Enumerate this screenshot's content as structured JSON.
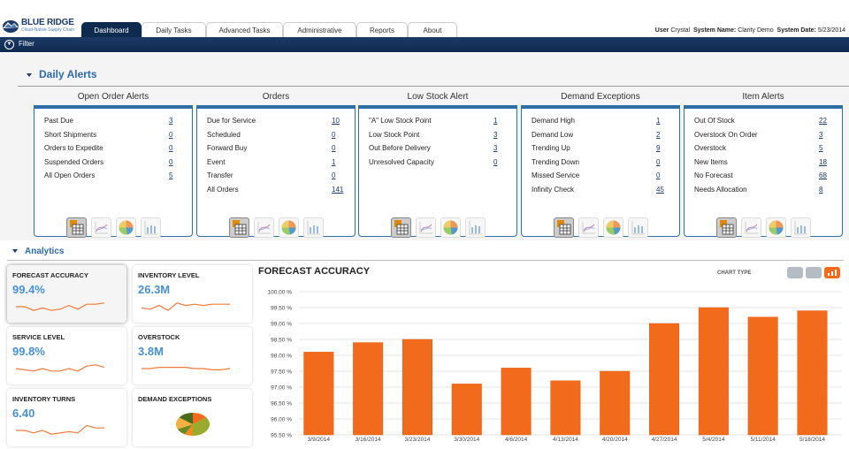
{
  "header": {
    "logo_name": "BLUE RIDGE",
    "logo_tagline": "Cloud-Native Supply Chain",
    "tabs": [
      {
        "label": "Dashboard",
        "active": true
      },
      {
        "label": "Daily Tasks"
      },
      {
        "label": "Advanced Tasks"
      },
      {
        "label": "Administrative"
      },
      {
        "label": "Reports"
      },
      {
        "label": "About"
      }
    ],
    "user_label": "User",
    "user": "Crystal",
    "system_name_label": "System Name:",
    "system_name": "Clarity Demo",
    "system_date_label": "System Date:",
    "system_date": "5/23/2014"
  },
  "navbar": {
    "filter_label": "Filter",
    "filter_icon": "filter-icon"
  },
  "daily_alerts": {
    "title": "Daily Alerts",
    "panels": [
      {
        "title": "Open Order Alerts",
        "rows": [
          {
            "label": "Past Due",
            "value": "3"
          },
          {
            "label": "Short Shipments",
            "value": "0"
          },
          {
            "label": "Orders to Expedite",
            "value": "0"
          },
          {
            "label": "Suspended Orders",
            "value": "0"
          },
          {
            "label": "All Open Orders",
            "value": "5"
          }
        ]
      },
      {
        "title": "Orders",
        "rows": [
          {
            "label": "Due for Service",
            "value": "10"
          },
          {
            "label": "Scheduled",
            "value": "0"
          },
          {
            "label": "Forward Buy",
            "value": "0"
          },
          {
            "label": "Event",
            "value": "1"
          },
          {
            "label": "Transfer",
            "value": "0"
          },
          {
            "label": "All Orders",
            "value": "141"
          }
        ]
      },
      {
        "title": "Low Stock Alert",
        "rows": [
          {
            "label": "\"A\" Low Stock Point",
            "value": "1"
          },
          {
            "label": "Low Stock Point",
            "value": "3"
          },
          {
            "label": "Out Before Delivery",
            "value": "3"
          },
          {
            "label": "Unresolved Capacity",
            "value": "0"
          }
        ]
      },
      {
        "title": "Demand Exceptions",
        "rows": [
          {
            "label": "Demand High",
            "value": "1"
          },
          {
            "label": "Demand Low",
            "value": "2"
          },
          {
            "label": "Trending Up",
            "value": "9"
          },
          {
            "label": "Trending Down",
            "value": "0"
          },
          {
            "label": "Missed Service",
            "value": "0"
          },
          {
            "label": "Infinity Check",
            "value": "45"
          }
        ]
      },
      {
        "title": "Item Alerts",
        "rows": [
          {
            "label": "Out Of Stock",
            "value": "22"
          },
          {
            "label": "Overstock On Order",
            "value": "3"
          },
          {
            "label": "Overstock",
            "value": "5"
          },
          {
            "label": "New Items",
            "value": "18"
          },
          {
            "label": "No Forecast",
            "value": "68"
          },
          {
            "label": "Needs Allocation",
            "value": "8"
          }
        ]
      }
    ],
    "view_icons": [
      "table-view-icon",
      "line-chart-view-icon",
      "pie-chart-view-icon",
      "bar-chart-view-icon"
    ]
  },
  "analytics": {
    "title": "Analytics",
    "cards": [
      {
        "title": "FORECAST ACCURACY",
        "value": "99.4%",
        "selected": true,
        "trend": [
          5,
          5,
          2,
          4,
          2,
          3,
          6,
          3,
          7,
          7,
          8
        ]
      },
      {
        "title": "INVENTORY LEVEL",
        "value": "26.3M",
        "trend": [
          4,
          3,
          6,
          2,
          8,
          6,
          7,
          6,
          7,
          7,
          7
        ]
      },
      {
        "title": "SERVICE LEVEL",
        "value": "99.8%",
        "trend": [
          5,
          4,
          3,
          5,
          3,
          3,
          5,
          3,
          7,
          8,
          6
        ]
      },
      {
        "title": "OVERSTOCK",
        "value": "3.8M",
        "trend": [
          5,
          5,
          6,
          6,
          6,
          6,
          5,
          5,
          4,
          4,
          5
        ]
      },
      {
        "title": "INVENTORY TURNS",
        "value": "6.40",
        "trend": [
          5,
          5,
          3,
          5,
          2,
          3,
          4,
          3,
          9,
          7,
          7
        ]
      },
      {
        "title": "DEMAND EXCEPTIONS",
        "value": "",
        "pie": [
          {
            "v": 15,
            "c": "#f26a1b"
          },
          {
            "v": 35,
            "c": "#9aaa2a"
          },
          {
            "v": 8,
            "c": "#f28a20"
          },
          {
            "v": 10,
            "c": "#6a8a20"
          },
          {
            "v": 17,
            "c": "#f5b040"
          },
          {
            "v": 15,
            "c": "#4a6a1a"
          }
        ]
      }
    ]
  },
  "chart_type": {
    "label": "CHART TYPE",
    "options": [
      "area-chart-icon",
      "line-chart-icon",
      "bar-chart-icon"
    ],
    "selected": "bar-chart-icon",
    "accent": "#f26a1b"
  },
  "chart_data": {
    "type": "bar",
    "title": "FORECAST ACCURACY",
    "categories": [
      "3/9/2014",
      "3/16/2014",
      "3/23/2014",
      "3/30/2014",
      "4/6/2014",
      "4/13/2014",
      "4/20/2014",
      "4/27/2014",
      "5/4/2014",
      "5/11/2014",
      "5/18/2014"
    ],
    "values": [
      98.1,
      98.4,
      98.5,
      97.1,
      97.6,
      97.2,
      97.5,
      99.0,
      99.5,
      99.2,
      99.4
    ],
    "ylim": [
      95.5,
      100
    ],
    "yticks": [
      "100.00 %",
      "99.50 %",
      "99.00 %",
      "98.50 %",
      "98.00 %",
      "97.50 %",
      "97.00 %",
      "96.50 %",
      "96.00 %",
      "95.50 %"
    ],
    "grid": true,
    "color": "#f26a1b"
  }
}
